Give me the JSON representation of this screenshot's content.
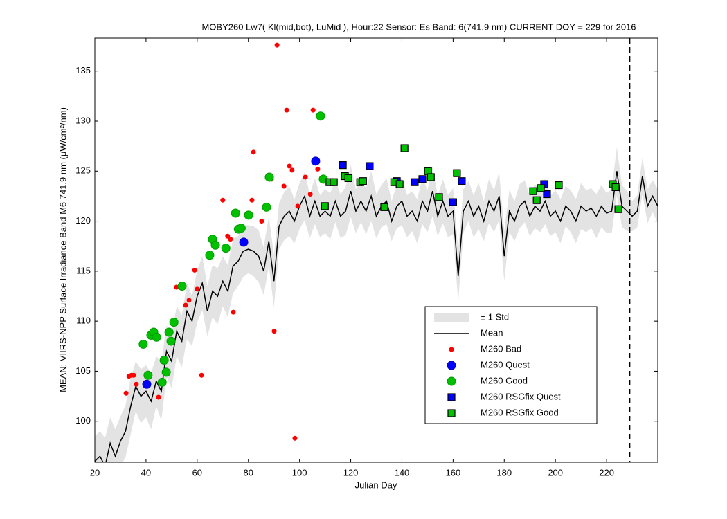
{
  "chart_data": {
    "type": "line",
    "title": "MOBY260   Lw7( Kl(mid,bot), LuMid ),   Hour:22 Sensor: Es Band: 6(741.9 nm)   CURRENT DOY = 229 for 2016",
    "xlabel": "Julian Day",
    "ylabel": "MEAN: VIIRS-NPP Surface Irradiance Band M6 741.9 nm (μW/cm²/nm)",
    "xlim": [
      20,
      240
    ],
    "ylim": [
      95.9,
      138.3
    ],
    "xticks": [
      20,
      40,
      60,
      80,
      100,
      120,
      140,
      160,
      180,
      200,
      220
    ],
    "yticks": [
      100,
      105,
      110,
      115,
      120,
      125,
      130,
      135
    ],
    "vline": 229,
    "x": [
      20,
      22,
      24,
      26,
      28,
      30,
      32,
      34,
      36,
      38,
      40,
      42,
      44,
      46,
      48,
      50,
      52,
      54,
      56,
      58,
      60,
      62,
      64,
      66,
      68,
      70,
      72,
      74,
      76,
      78,
      80,
      82,
      84,
      86,
      88,
      90,
      92,
      94,
      96,
      98,
      100,
      102,
      104,
      106,
      108,
      110,
      112,
      114,
      116,
      118,
      120,
      122,
      124,
      126,
      128,
      130,
      132,
      134,
      136,
      138,
      140,
      142,
      144,
      146,
      148,
      150,
      152,
      154,
      156,
      158,
      160,
      162,
      164,
      166,
      168,
      170,
      172,
      174,
      176,
      178,
      180,
      182,
      184,
      186,
      188,
      190,
      192,
      194,
      196,
      198,
      200,
      202,
      204,
      206,
      208,
      210,
      212,
      214,
      216,
      218,
      220,
      222,
      224,
      226,
      228,
      230,
      232,
      234,
      236,
      238,
      240
    ],
    "band": {
      "name": "± 1 Std",
      "color": "#e3e3e3",
      "values": [
        2.5,
        2.5,
        2.8,
        2.6,
        2.7,
        2.5,
        2.6,
        2.8,
        2.5,
        2.7,
        2.6,
        2.8,
        2.5,
        2.9,
        2.6,
        2.7,
        2.5,
        2.6,
        2.8,
        2.5,
        2.6,
        2.7,
        2.5,
        2.6,
        2.8,
        2.5,
        2.6,
        2.7,
        2.5,
        2.6,
        2.4,
        2.5,
        2.6,
        2.4,
        2.5,
        2.6,
        2.3,
        2.4,
        2.5,
        2.2,
        2.3,
        2.4,
        2.2,
        2.3,
        2.1,
        2.2,
        2.3,
        2.1,
        2.2,
        2.4,
        2.6,
        2.2,
        2.1,
        2.3,
        2.5,
        2.2,
        2.1,
        2.3,
        2.0,
        2.2,
        2.4,
        2.1,
        2.0,
        2.2,
        2.3,
        2.1,
        2.5,
        2.0,
        2.2,
        2.1,
        2.3,
        2.6,
        2.2,
        2.0,
        2.1,
        2.3,
        2.0,
        2.2,
        2.1,
        2.4,
        2.5,
        2.1,
        2.0,
        2.2,
        2.1,
        2.0,
        2.2,
        2.1,
        2.3,
        2.0,
        2.1,
        2.2,
        2.0,
        2.1,
        2.2,
        2.3,
        2.1,
        2.0,
        2.2,
        2.1,
        2.0,
        2.2,
        2.4,
        2.1,
        2.0,
        1.5,
        1.6,
        1.8,
        1.7,
        1.6,
        1.7
      ]
    },
    "mean": {
      "name": "Mean",
      "color": "#000000",
      "values": [
        96,
        96.5,
        95.5,
        97.8,
        96.5,
        98,
        99,
        101.5,
        103.5,
        102.5,
        103,
        102,
        104,
        103,
        107,
        106,
        109,
        108,
        111,
        110,
        112.5,
        113.8,
        111,
        113,
        112.5,
        114,
        113,
        115.5,
        116,
        117,
        117.2,
        117,
        116.5,
        115,
        118,
        114,
        119.5,
        120.5,
        121,
        120,
        121.5,
        122.5,
        120.5,
        122,
        120.5,
        121,
        120.5,
        122,
        120.5,
        121,
        123,
        121,
        122,
        121,
        122.5,
        120.5,
        121.5,
        122,
        120,
        121.5,
        122,
        120.5,
        121,
        120,
        122,
        121,
        123,
        120.5,
        122,
        120.5,
        121,
        114.5,
        121,
        122,
        120.5,
        121.5,
        120,
        122,
        121,
        122.5,
        116.5,
        121,
        120,
        121.5,
        122,
        120.5,
        121.5,
        121,
        122,
        120.5,
        121,
        120,
        121.5,
        121,
        120,
        121.5,
        121,
        121.3,
        120.5,
        121.5,
        120.8,
        121,
        125,
        121.5,
        121,
        120.5,
        121,
        124.5,
        121.5,
        122.5,
        121.5
      ]
    },
    "series": [
      {
        "name": "M260 Bad",
        "color": "#ff0000",
        "marker": "dot",
        "x": [
          32.2,
          33.3,
          34.3,
          35.2,
          36.2,
          44.9,
          51.9,
          55.5,
          56.8,
          59,
          60,
          61.7,
          70,
          71.9,
          73,
          74.1,
          79.3,
          81.4,
          82,
          85.2,
          89,
          90.1,
          91.2,
          93.9,
          95,
          96,
          97.1,
          98.2,
          99.3,
          102.3,
          104.2,
          105.3,
          107.1
        ],
        "values": [
          102.8,
          104.5,
          104.6,
          104.6,
          103.7,
          102.4,
          113.4,
          111.6,
          112.1,
          115.1,
          113.2,
          104.6,
          122.1,
          118.5,
          118.2,
          110.9,
          120.6,
          122.1,
          126.9,
          120,
          124.2,
          109,
          137.6,
          123.5,
          131.1,
          125.5,
          125.1,
          98.3,
          121.5,
          124.4,
          122.7,
          131.1,
          125.2
        ]
      },
      {
        "name": "M260 Quest",
        "color": "#0000ff",
        "marker": "circle",
        "x": [
          40.3,
          78.2,
          106.3
        ],
        "values": [
          103.7,
          117.9,
          126
        ]
      },
      {
        "name": "M260 Good",
        "color": "#00c000",
        "marker": "circle",
        "x": [
          38.9,
          40.8,
          41.9,
          43,
          44.1,
          46.3,
          47.1,
          47.9,
          49,
          49.8,
          50.9,
          54.1,
          64.9,
          66,
          67.1,
          71.2,
          75,
          76.1,
          77.2,
          80.1,
          87.1,
          88.2,
          108.2,
          109.3
        ],
        "values": [
          107.7,
          104.6,
          108.6,
          108.9,
          108.4,
          103.9,
          106.1,
          104.9,
          108.9,
          108,
          109.9,
          113.5,
          116.6,
          118.2,
          117.6,
          117.3,
          120.8,
          119.2,
          119.3,
          120.6,
          121.4,
          124.4,
          130.5,
          124.2
        ]
      },
      {
        "name": "M260 RSGfix Quest",
        "color": "#0000ff",
        "marker": "square",
        "x": [
          116.9,
          127.4,
          138,
          145,
          148,
          160,
          163.4,
          195.6,
          196.7
        ],
        "values": [
          125.6,
          125.5,
          124,
          123.9,
          124.2,
          121.9,
          124,
          123.7,
          122.7
        ]
      },
      {
        "name": "M260 RSGfix Good",
        "color": "#00c000",
        "marker": "square",
        "x": [
          109.9,
          111.7,
          113.4,
          117.7,
          119.1,
          123.7,
          124.8,
          133.1,
          137,
          139.1,
          141,
          150.2,
          151.3,
          154.5,
          161.5,
          191.3,
          192.7,
          194.3,
          201.3,
          222.4,
          223.5,
          224.6
        ],
        "values": [
          121.5,
          123.9,
          123.9,
          124.5,
          124.3,
          123.9,
          124,
          121.4,
          123.9,
          123.7,
          127.3,
          125,
          124.4,
          122.4,
          124.8,
          123,
          122.1,
          123.3,
          123.6,
          123.7,
          123.4,
          121.2
        ]
      }
    ]
  }
}
